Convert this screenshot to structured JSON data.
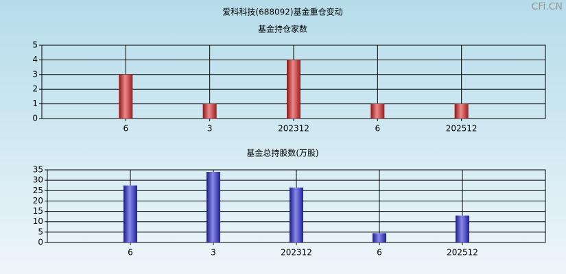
{
  "title": "爱科科技(688092)基金重仓变动",
  "watermark": "CFi.CN",
  "chart_data": [
    {
      "type": "bar",
      "title": "基金持仓家数",
      "categories": [
        "6",
        "3",
        "202312",
        "6",
        "202512"
      ],
      "values": [
        3,
        1,
        4,
        1,
        1
      ],
      "color": "#e02828",
      "ylim": [
        0,
        5
      ],
      "yticks": [
        0,
        1,
        2,
        3,
        4,
        5
      ],
      "grid": true
    },
    {
      "type": "bar",
      "title": "基金总持股数(万股)",
      "categories": [
        "6",
        "3",
        "202312",
        "6",
        "202512"
      ],
      "values": [
        27.5,
        34,
        26.5,
        4.5,
        13
      ],
      "color": "#2b2bd8",
      "ylim": [
        0,
        35
      ],
      "yticks": [
        0,
        5,
        10,
        15,
        20,
        25,
        30,
        35
      ],
      "grid": true
    }
  ]
}
